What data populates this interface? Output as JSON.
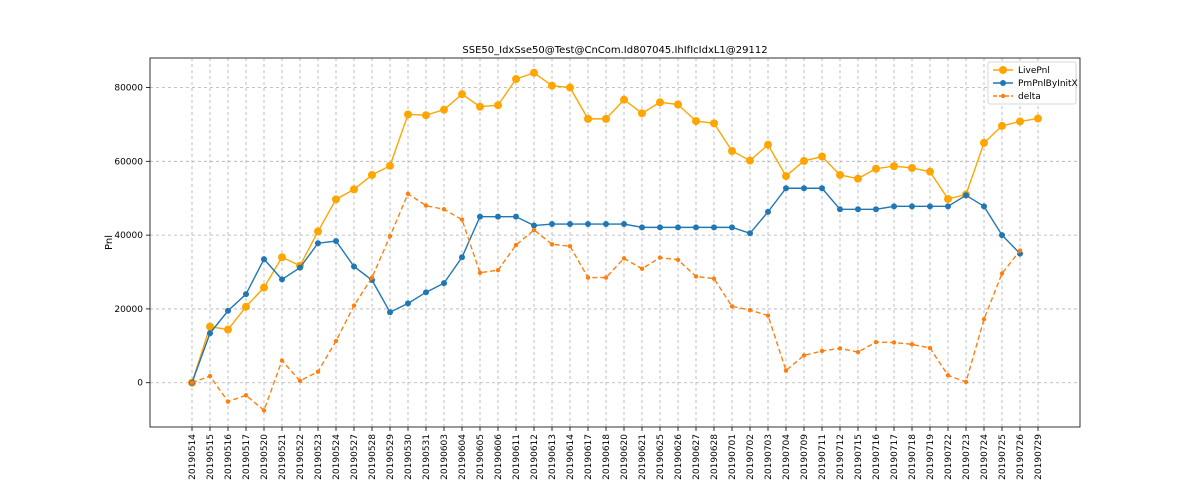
{
  "chart_data": {
    "type": "line",
    "title": "SSE50_IdxSse50@Test@CnCom.Id807045.IhIfIcIdxL1@29112",
    "xlabel": "",
    "ylabel": "Pnl",
    "ylim": [
      -12000,
      88000
    ],
    "yticks": [
      0,
      20000,
      40000,
      60000,
      80000
    ],
    "grid": true,
    "legend_position": "top-right",
    "categories": [
      "20190514",
      "20190515",
      "20190516",
      "20190517",
      "20190520",
      "20190521",
      "20190522",
      "20190523",
      "20190524",
      "20190527",
      "20190528",
      "20190529",
      "20190530",
      "20190531",
      "20190603",
      "20190604",
      "20190605",
      "20190606",
      "20190611",
      "20190612",
      "20190613",
      "20190614",
      "20190617",
      "20190618",
      "20190620",
      "20190621",
      "20190625",
      "20190626",
      "20190627",
      "20190628",
      "20190701",
      "20190702",
      "20190703",
      "20190704",
      "20190709",
      "20190711",
      "20190712",
      "20190715",
      "20190716",
      "20190717",
      "20190718",
      "20190719",
      "20190722",
      "20190723",
      "20190724",
      "20190725",
      "20190726",
      "20190729"
    ],
    "series": [
      {
        "name": "LivePnl",
        "color": "#FFA500",
        "style": "solid",
        "marker": "circle-large",
        "values": [
          0,
          15200,
          14400,
          20600,
          25800,
          34000,
          31700,
          41000,
          49700,
          52400,
          56300,
          58800,
          72700,
          72500,
          74000,
          78200,
          74800,
          75200,
          82300,
          84000,
          80500,
          80000,
          71500,
          71500,
          76700,
          73000,
          76000,
          75400,
          70900,
          70300,
          62800,
          60200,
          64500,
          56000,
          60100,
          61300,
          56300,
          55300,
          58000,
          58700,
          58200,
          57200,
          49800,
          51000,
          65000,
          69600,
          70800,
          71600
        ]
      },
      {
        "name": "PmPnlByInitX",
        "color": "#1f77b4",
        "style": "solid",
        "marker": "circle",
        "values": [
          0,
          13400,
          19500,
          24000,
          33500,
          28000,
          31200,
          37800,
          38400,
          31500,
          27800,
          19100,
          21500,
          24500,
          27000,
          34000,
          45000,
          45000,
          45000,
          42600,
          43000,
          43000,
          43000,
          43000,
          43000,
          42100,
          42100,
          42100,
          42100,
          42100,
          42100,
          40500,
          46300,
          52700,
          52700,
          52700,
          47000,
          47000,
          47000,
          47800,
          47800,
          47800,
          47800,
          50800,
          47800,
          40000,
          35000,
          null
        ]
      },
      {
        "name": "delta",
        "color": "#ff7f0e",
        "style": "dashed",
        "marker": "dot-small",
        "values": [
          0,
          1800,
          -5100,
          -3400,
          -7500,
          6000,
          500,
          3000,
          11300,
          20900,
          28500,
          39700,
          51200,
          48000,
          47000,
          44200,
          29800,
          30500,
          37300,
          41400,
          37500,
          37000,
          28500,
          28500,
          33700,
          30900,
          33900,
          33300,
          28800,
          28200,
          20700,
          19700,
          18200,
          3300,
          7400,
          8600,
          9300,
          8300,
          11000,
          10900,
          10400,
          9400,
          2000,
          200,
          17200,
          29600,
          35800,
          null
        ]
      }
    ]
  }
}
